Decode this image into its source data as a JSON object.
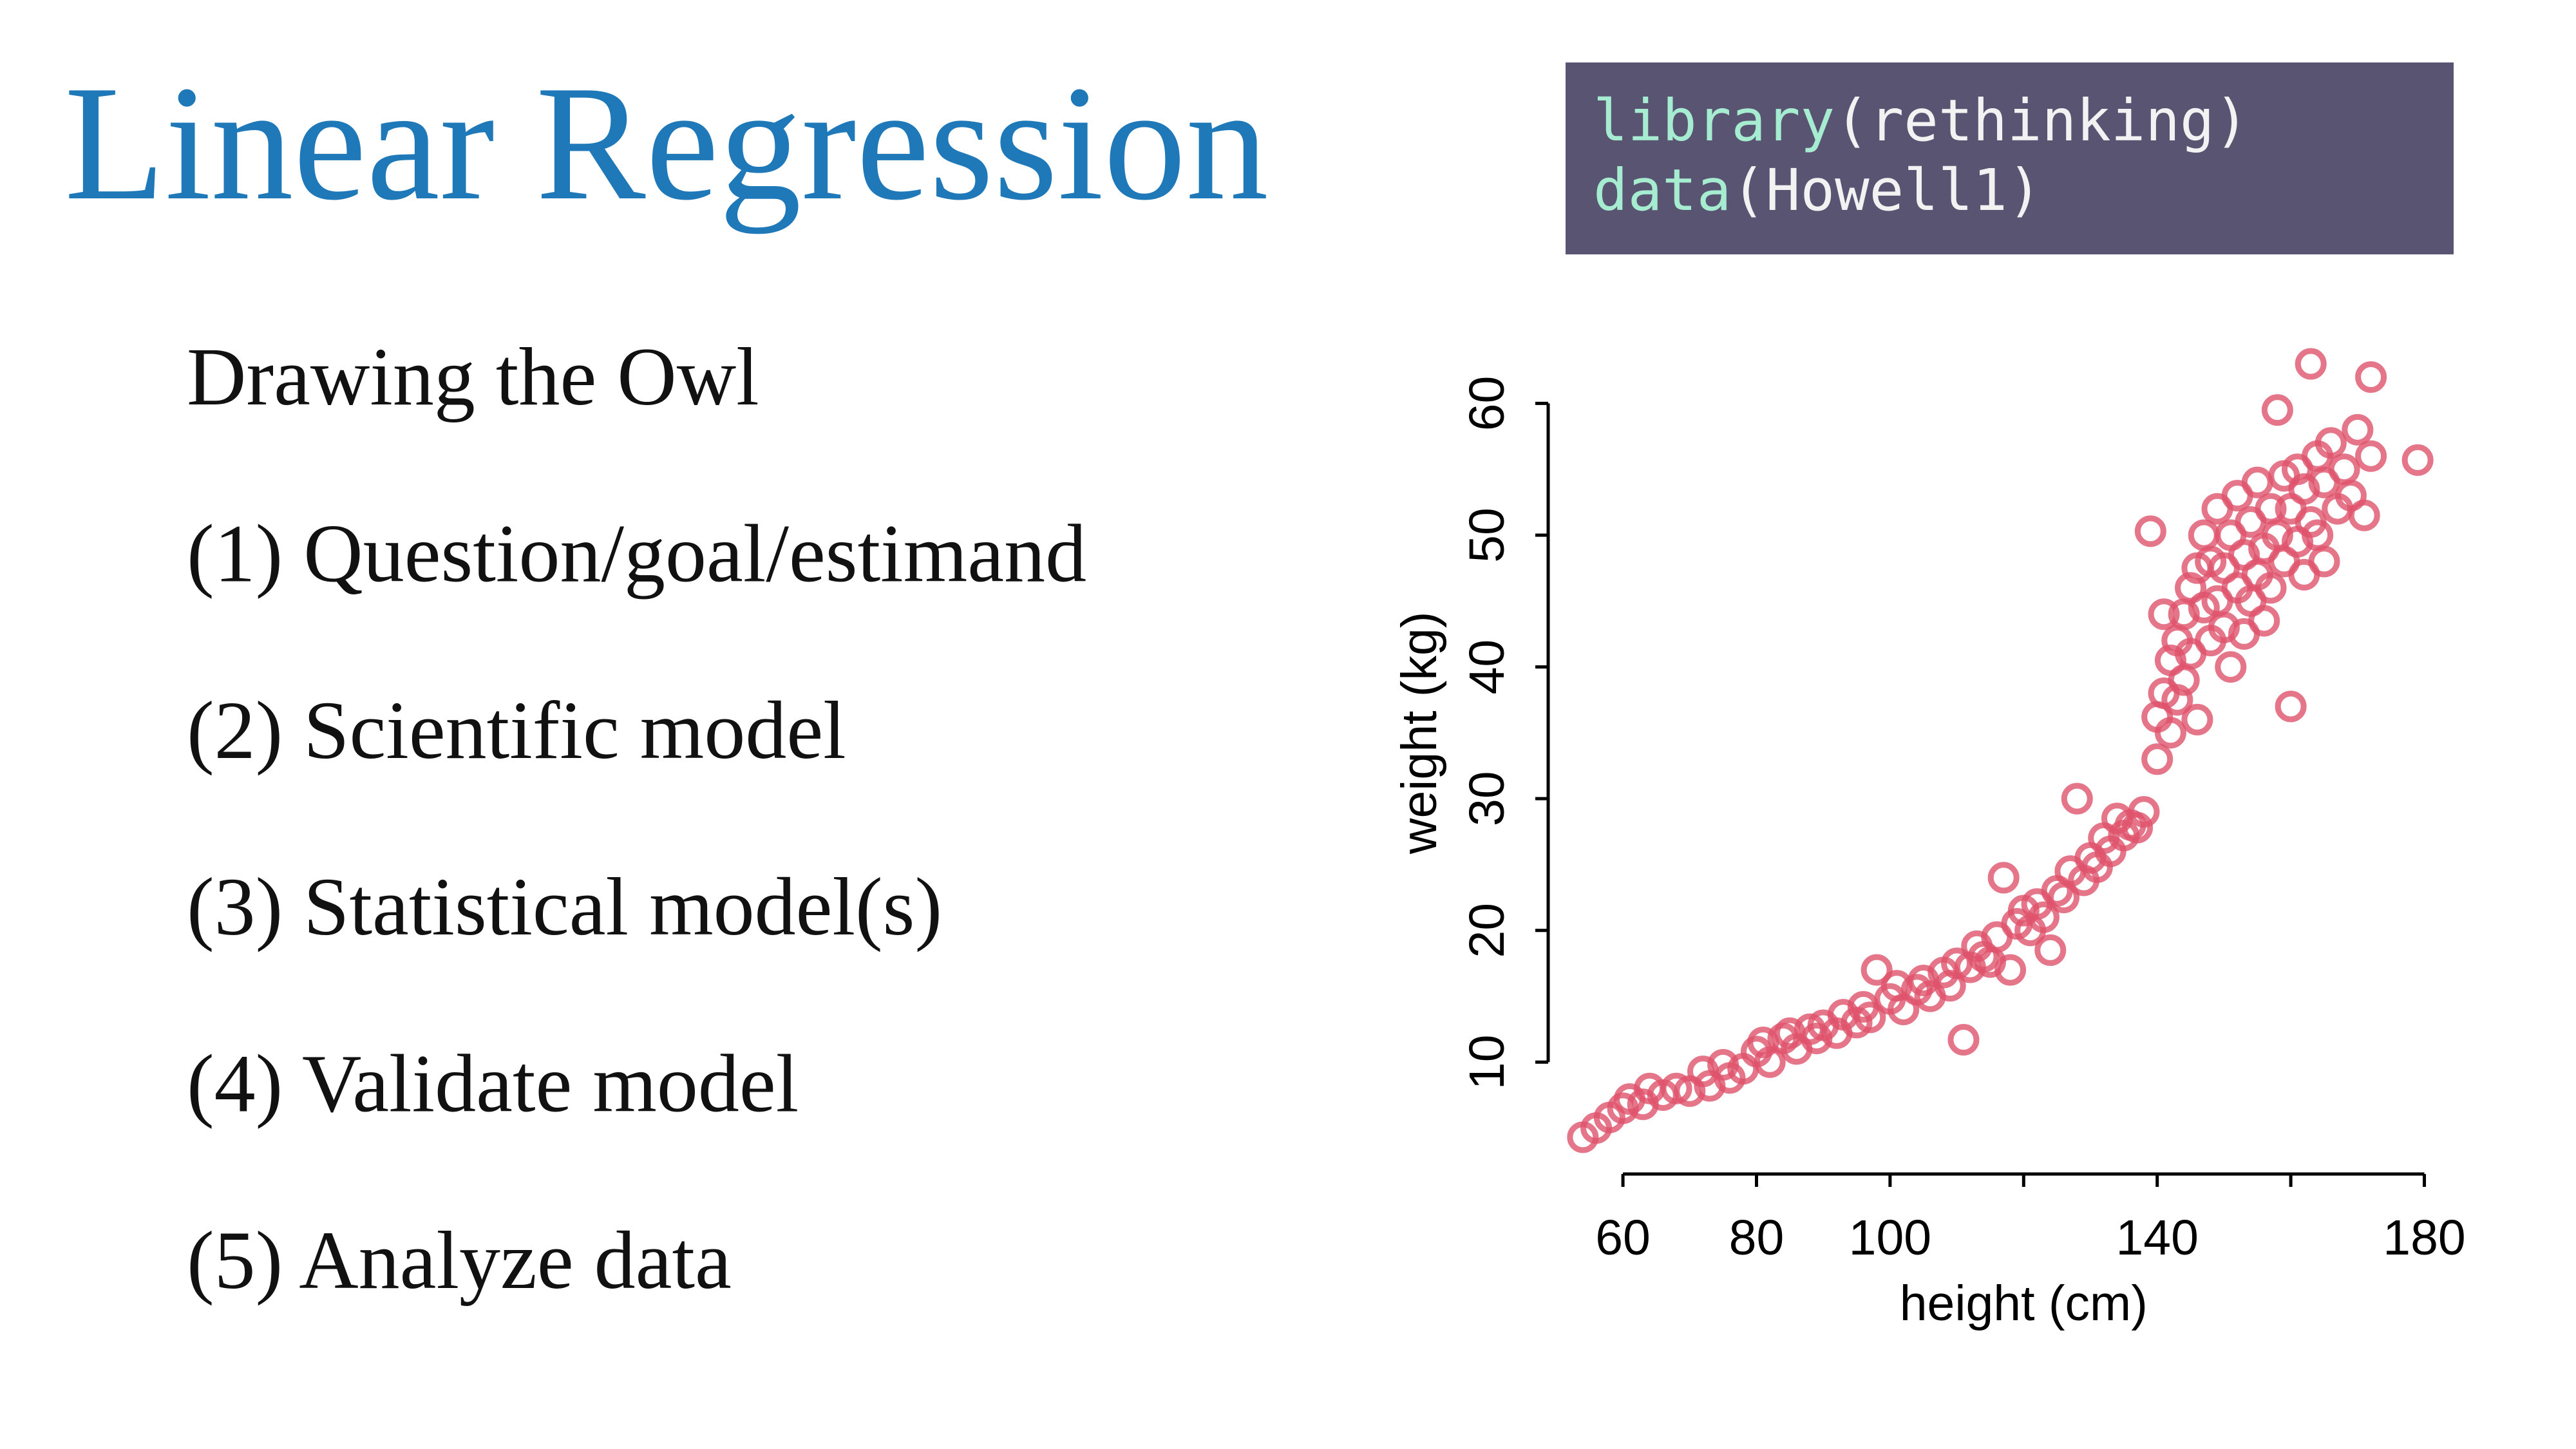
{
  "slide": {
    "title": "Linear Regression",
    "code": [
      [
        "library",
        "(rethinking)"
      ],
      [
        "data",
        "(Howell1)"
      ]
    ],
    "items": [
      "Drawing the Owl",
      "(1) Question/goal/estimand",
      "(2) Scientific model",
      "(3) Statistical model(s)",
      "(4) Validate model",
      "(5) Analyze data"
    ]
  },
  "chart_data": {
    "type": "scatter",
    "x_label": "height (cm)",
    "y_label": "weight (kg)",
    "color": "#df536b",
    "xlim": [
      49,
      184
    ],
    "ylim": [
      1.9,
      65.3
    ],
    "xticks": [
      60,
      80,
      100,
      {
        "value": 120,
        "label": null
      },
      140,
      {
        "value": 160,
        "label": null
      },
      180
    ],
    "yticks": [
      10,
      20,
      30,
      40,
      50,
      60
    ],
    "x": [
      54,
      56,
      58,
      60,
      61,
      63,
      64,
      66,
      68,
      70,
      72,
      73,
      75,
      76,
      78,
      80,
      81,
      82,
      84,
      85,
      86,
      88,
      89,
      90,
      92,
      93,
      95,
      96,
      97,
      98,
      100,
      101,
      102,
      104,
      105,
      106,
      108,
      109,
      110,
      111,
      112,
      113,
      114,
      115,
      116,
      117,
      118,
      119,
      120,
      121,
      122,
      123,
      124,
      125,
      126,
      127,
      128,
      129,
      130,
      131,
      132,
      133,
      134,
      135,
      136,
      137,
      138,
      139,
      140,
      140,
      141,
      141,
      142,
      142,
      143,
      143,
      144,
      144,
      145,
      145,
      146,
      146,
      147,
      147,
      148,
      148,
      149,
      149,
      150,
      150,
      151,
      151,
      152,
      152,
      153,
      153,
      154,
      154,
      155,
      155,
      156,
      156,
      157,
      157,
      158,
      158,
      159,
      159,
      160,
      160,
      161,
      161,
      162,
      162,
      163,
      163,
      164,
      164,
      165,
      165,
      166,
      167,
      168,
      169,
      170,
      171,
      172,
      172,
      179
    ],
    "values": [
      4.3,
      5,
      5.8,
      6.5,
      7.2,
      6.8,
      8,
      7.5,
      8,
      7.8,
      9.3,
      8.2,
      9.8,
      8.8,
      9.5,
      10.8,
      11.5,
      10,
      11.8,
      12.2,
      11,
      12.5,
      11.8,
      12.8,
      12.2,
      13.6,
      13,
      14.2,
      13.4,
      17,
      14.8,
      15.8,
      14,
      15.5,
      16.2,
      15,
      16.8,
      15.8,
      17.5,
      11.7,
      17.2,
      18.8,
      18,
      17.6,
      19.5,
      24,
      17,
      20.5,
      21.5,
      20,
      22,
      21,
      18.5,
      23,
      22.5,
      24.5,
      30,
      23.8,
      25.5,
      24.8,
      27,
      26,
      28.5,
      27.2,
      28,
      27.8,
      29,
      50.3,
      33,
      36.2,
      38,
      44,
      35,
      40.5,
      42,
      37.5,
      44,
      39,
      46,
      41,
      47.5,
      36,
      44.5,
      50,
      42,
      48,
      45,
      52,
      43,
      47.5,
      50,
      40,
      46,
      53,
      48.5,
      42.5,
      51,
      45,
      47,
      54,
      49,
      43.5,
      52,
      46,
      50,
      59.5,
      48,
      54.5,
      37,
      52,
      55,
      49.5,
      47,
      53.5,
      51,
      63,
      56,
      50,
      54,
      48,
      57,
      52,
      55,
      53,
      58,
      51.5,
      62,
      56,
      55.7
    ]
  }
}
